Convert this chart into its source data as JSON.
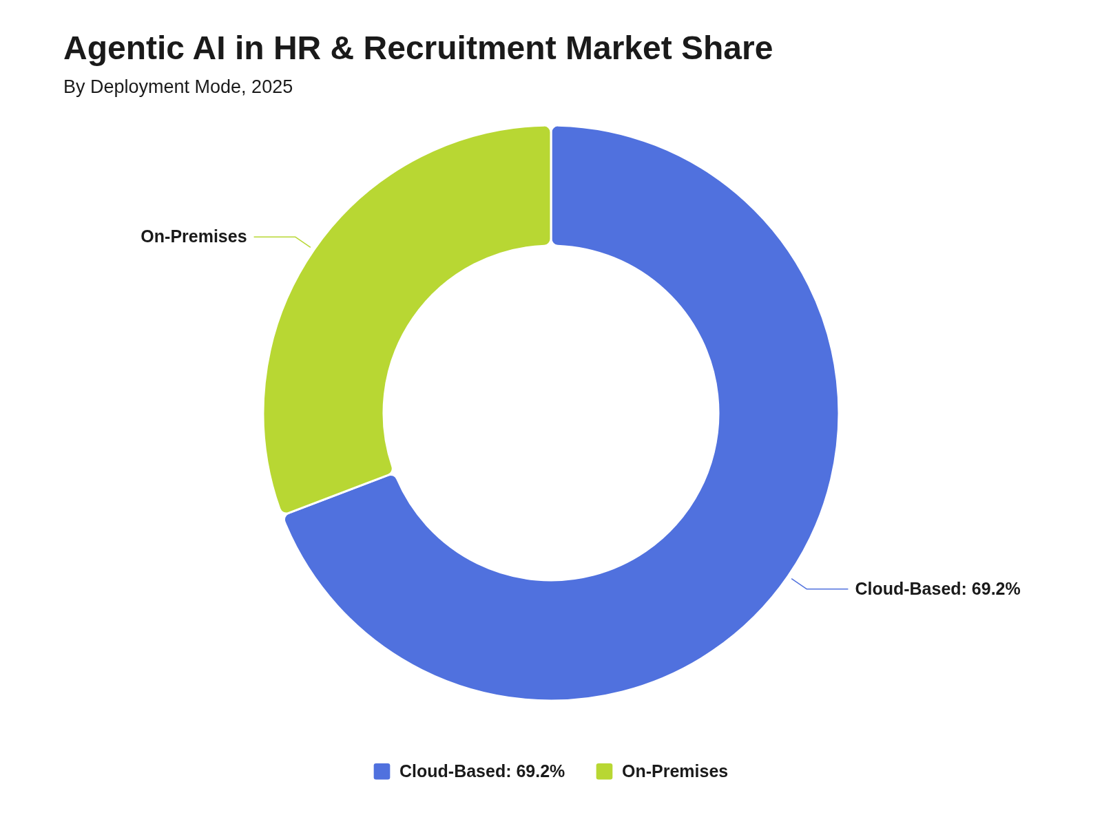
{
  "chart_data": {
    "type": "donut",
    "title": "Agentic AI in HR & Recruitment Market Share",
    "subtitle": "By Deployment Mode, 2025",
    "categories": [
      "Cloud-Based: 69.2%",
      "On-Premises"
    ],
    "values": [
      69.2,
      30.8
    ],
    "colors": [
      "#5071de",
      "#b8d733"
    ],
    "legend": "bottom"
  }
}
